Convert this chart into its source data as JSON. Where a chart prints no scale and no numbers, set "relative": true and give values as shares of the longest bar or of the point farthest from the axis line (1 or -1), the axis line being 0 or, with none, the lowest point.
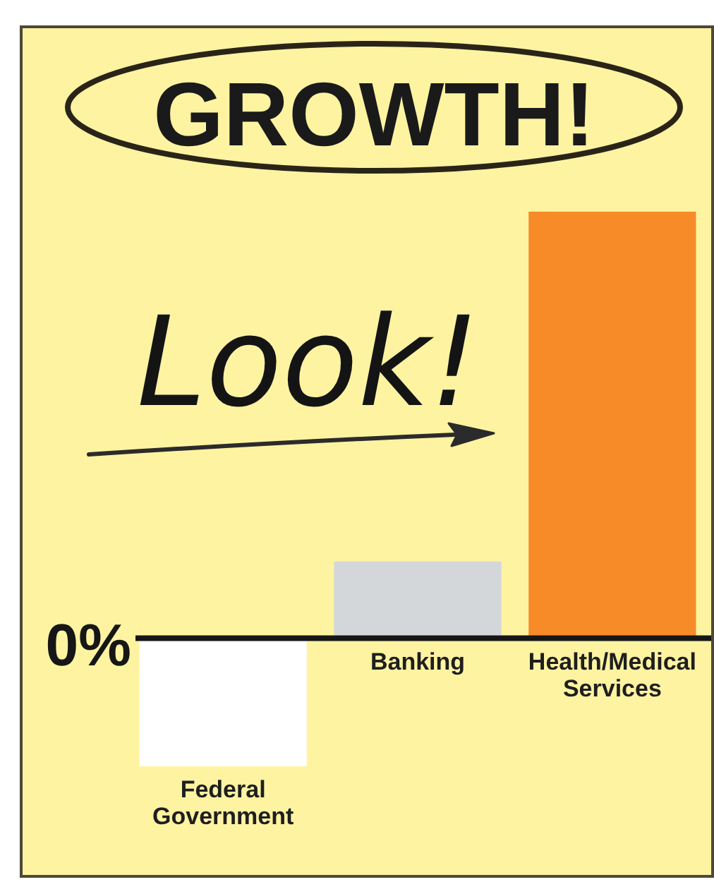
{
  "chart_data": {
    "type": "bar",
    "title": "GROWTH!",
    "relative": true,
    "categories": [
      "Federal Government",
      "Banking",
      "Health/Medical Services"
    ],
    "values": [
      -0.3,
      0.18,
      1
    ],
    "colors": [
      "#ffffff",
      "#d4d7da",
      "#f68b28"
    ],
    "annotations": [
      "Look!",
      "0%"
    ]
  }
}
